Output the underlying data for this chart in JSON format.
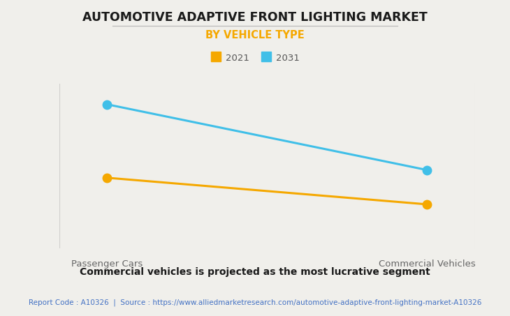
{
  "title": "AUTOMOTIVE ADAPTIVE FRONT LIGHTING MARKET",
  "subtitle": "BY VEHICLE TYPE",
  "categories": [
    "Passenger Cars",
    "Commercial Vehicles"
  ],
  "series": [
    {
      "label": "2021",
      "values": [
        4.5,
        2.8
      ],
      "color": "#F5A800",
      "marker": "o",
      "linewidth": 2.2
    },
    {
      "label": "2031",
      "values": [
        9.2,
        5.0
      ],
      "color": "#40BFE8",
      "marker": "o",
      "linewidth": 2.2
    }
  ],
  "ylim": [
    0,
    10.5
  ],
  "background_color": "#F0EFEB",
  "plot_bg_color": "#F0EFEB",
  "grid_color": "#D0CFCC",
  "title_fontsize": 12.5,
  "subtitle_fontsize": 10.5,
  "footer_text": "Commercial vehicles is projected as the most lucrative segment",
  "source_text": "Report Code : A10326  |  Source : https://www.alliedmarketresearch.com/automotive-adaptive-front-lighting-market-A10326",
  "title_color": "#1A1A1A",
  "subtitle_color": "#F5A800",
  "footer_color": "#1A1A1A",
  "source_color": "#4472C4",
  "xlabel_color": "#666666",
  "legend_label_color": "#555555",
  "underline_color": "#BBBBBB"
}
